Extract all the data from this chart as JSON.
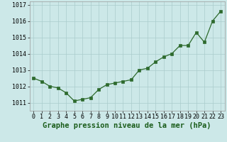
{
  "x": [
    0,
    1,
    2,
    3,
    4,
    5,
    6,
    7,
    8,
    9,
    10,
    11,
    12,
    13,
    14,
    15,
    16,
    17,
    18,
    19,
    20,
    21,
    22,
    23
  ],
  "y": [
    1012.5,
    1012.3,
    1012.0,
    1011.9,
    1011.6,
    1011.1,
    1011.2,
    1011.3,
    1011.8,
    1012.1,
    1012.2,
    1012.3,
    1012.4,
    1013.0,
    1013.1,
    1013.5,
    1013.8,
    1014.0,
    1014.5,
    1014.5,
    1015.3,
    1014.7,
    1016.0,
    1016.6
  ],
  "line_color": "#2d6a2d",
  "marker_color": "#2d6a2d",
  "bg_color": "#cce8e8",
  "grid_color": "#aacccc",
  "title": "Graphe pression niveau de la mer (hPa)",
  "ylim_min": 1010.5,
  "ylim_max": 1017.2,
  "yticks": [
    1011,
    1012,
    1013,
    1014,
    1015,
    1016,
    1017
  ],
  "title_fontsize": 7.5,
  "tick_fontsize": 6.0,
  "title_color": "#1a5c1a"
}
